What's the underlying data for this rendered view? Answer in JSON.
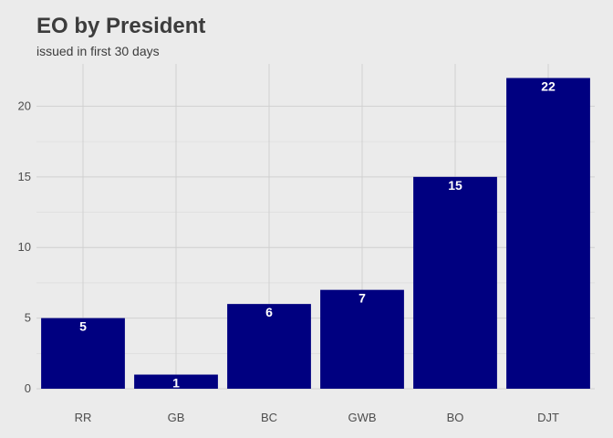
{
  "chart_data": {
    "type": "bar",
    "title": "EO by President",
    "subtitle": "issued in first 30 days",
    "xlabel": "",
    "ylabel": "",
    "categories": [
      "RR",
      "GB",
      "BC",
      "GWB",
      "BO",
      "DJT"
    ],
    "values": [
      5,
      1,
      6,
      7,
      15,
      22
    ],
    "ylim": [
      0,
      23
    ],
    "yticks": [
      0,
      5,
      10,
      15,
      20
    ],
    "bar_color": "#000080",
    "background_color": "#ebebeb",
    "grid": true,
    "legend": "none"
  }
}
